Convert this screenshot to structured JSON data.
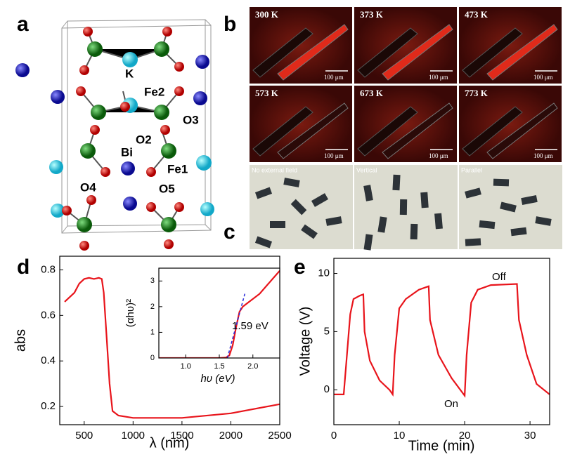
{
  "panels": [
    "a",
    "b",
    "c",
    "d",
    "e"
  ],
  "structure": {
    "labels": [
      "K",
      "Fe2",
      "O3",
      "O2",
      "Bi",
      "Fe1",
      "O4",
      "O5"
    ]
  },
  "micrographs": {
    "temperatures": [
      "300 K",
      "373 K",
      "473 K",
      "573 K",
      "673 K",
      "773 K"
    ],
    "scale_bars": [
      "100 μm",
      "100 μm",
      "100 μm",
      "100 μm",
      "100 μm",
      "100 μm"
    ]
  },
  "field_images": {
    "labels": [
      "No external field",
      "Vertical",
      "Parallel"
    ]
  },
  "chart_data": [
    {
      "type": "line",
      "xlabel": "λ (nm)",
      "ylabel": "abs",
      "xlim": [
        250,
        2500
      ],
      "ylim": [
        0.12,
        0.86
      ],
      "xticks": [
        500,
        1000,
        1500,
        2000,
        2500
      ],
      "yticks": [
        0.2,
        0.4,
        0.6,
        0.8
      ],
      "series": [
        {
          "color": "#e8141b",
          "x": [
            300,
            400,
            450,
            500,
            550,
            600,
            650,
            680,
            700,
            730,
            760,
            790,
            850,
            1000,
            1500,
            2000,
            2500
          ],
          "values": [
            0.66,
            0.7,
            0.74,
            0.76,
            0.765,
            0.76,
            0.765,
            0.76,
            0.7,
            0.5,
            0.3,
            0.18,
            0.16,
            0.15,
            0.15,
            0.17,
            0.21
          ]
        }
      ]
    },
    {
      "type": "line",
      "xlabel": "hυ (eV)",
      "ylabel": "(αhυ)²",
      "annotation": "1.59 eV",
      "xlim": [
        0.6,
        2.4
      ],
      "ylim": [
        0,
        3.5
      ],
      "xticks": [
        {
          "value": 1,
          "label": "1.0"
        },
        1.5,
        {
          "value": 2,
          "label": "2.0"
        }
      ],
      "yticks": [
        0,
        1,
        2,
        3
      ],
      "series": [
        {
          "color": "#e8141b",
          "x": [
            0.6,
            1.0,
            1.5,
            1.6,
            1.65,
            1.7,
            1.75,
            1.8,
            1.85,
            1.95,
            2.1,
            2.3,
            2.4
          ],
          "values": [
            0,
            0,
            0,
            0.02,
            0.1,
            0.5,
            1.2,
            1.8,
            2.0,
            2.2,
            2.5,
            3.1,
            3.4
          ]
        },
        {
          "color": "#2b2bd9",
          "dashed": true,
          "x": [
            1.62,
            1.88
          ],
          "values": [
            0,
            2.5
          ]
        }
      ]
    },
    {
      "type": "line",
      "xlabel": "Time (min)",
      "ylabel": "Voltage (V)",
      "annotations": [
        "Off",
        "On"
      ],
      "xlim": [
        0,
        33
      ],
      "ylim": [
        -3,
        11.3
      ],
      "xticks": [
        0,
        10,
        20,
        30
      ],
      "yticks": [
        0,
        5,
        10
      ],
      "series": [
        {
          "color": "#e8141b",
          "x": [
            0,
            1.5,
            2,
            2.5,
            3,
            4,
            4.5,
            4.7,
            5.5,
            7,
            8.5,
            9,
            9.3,
            10,
            11,
            13,
            14.5,
            14.7,
            16,
            18,
            20,
            20.3,
            21,
            22,
            24,
            28,
            28.3,
            29.5,
            31,
            33
          ],
          "values": [
            -0.4,
            -0.4,
            3,
            6.5,
            7.8,
            8.1,
            8.2,
            5,
            2.5,
            0.8,
            0,
            -0.4,
            3,
            7,
            7.8,
            8.6,
            8.9,
            6,
            3,
            1,
            -0.5,
            3,
            7.5,
            8.6,
            9,
            9.1,
            6,
            3,
            0.5,
            -0.4
          ]
        }
      ]
    }
  ]
}
